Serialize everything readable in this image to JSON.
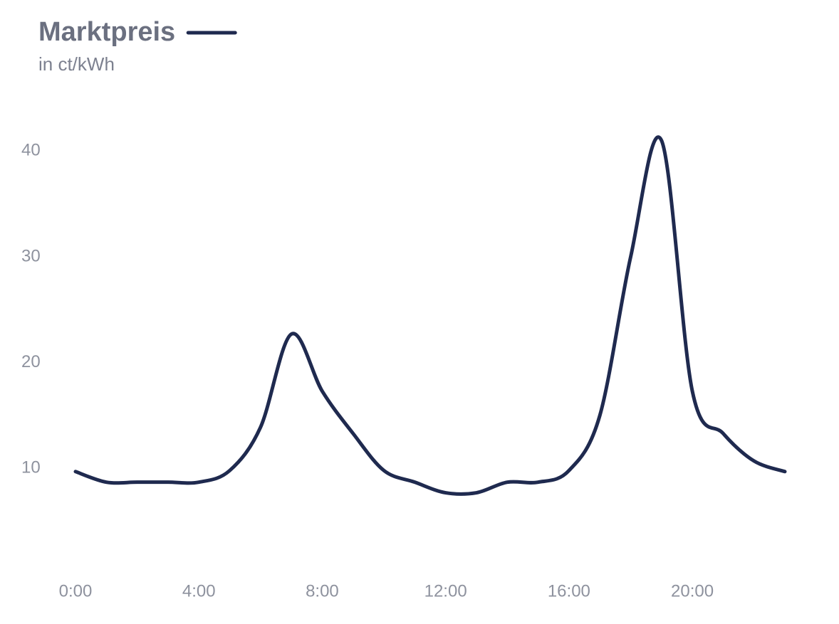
{
  "chart_data": {
    "type": "line",
    "y_label": "in ct/kWh",
    "x": [
      0,
      1,
      2,
      3,
      4,
      5,
      6,
      7,
      8,
      9,
      10,
      11,
      12,
      13,
      14,
      15,
      16,
      17,
      18,
      19,
      20,
      21,
      22,
      23
    ],
    "series": [
      {
        "name": "Marktpreis",
        "color": "#1f2a4f",
        "values": [
          9.7,
          8.7,
          8.7,
          8.7,
          8.7,
          9.8,
          13.9,
          22.7,
          17.3,
          13.3,
          9.8,
          8.7,
          7.7,
          7.7,
          8.7,
          8.7,
          9.8,
          15.0,
          30.0,
          41.0,
          17.3,
          13.3,
          10.7,
          9.7
        ]
      }
    ],
    "xlim": [
      0,
      23
    ],
    "xticks": [
      {
        "value": 0,
        "label": "0:00"
      },
      {
        "value": 4,
        "label": "4:00"
      },
      {
        "value": 8,
        "label": "8:00"
      },
      {
        "value": 12,
        "label": "12:00"
      },
      {
        "value": 16,
        "label": "16:00"
      },
      {
        "value": 20,
        "label": "20:00"
      }
    ],
    "ylim": [
      0,
      45
    ],
    "yticks": [
      10,
      20,
      30,
      40
    ],
    "grid": false,
    "legend": "top-left"
  }
}
